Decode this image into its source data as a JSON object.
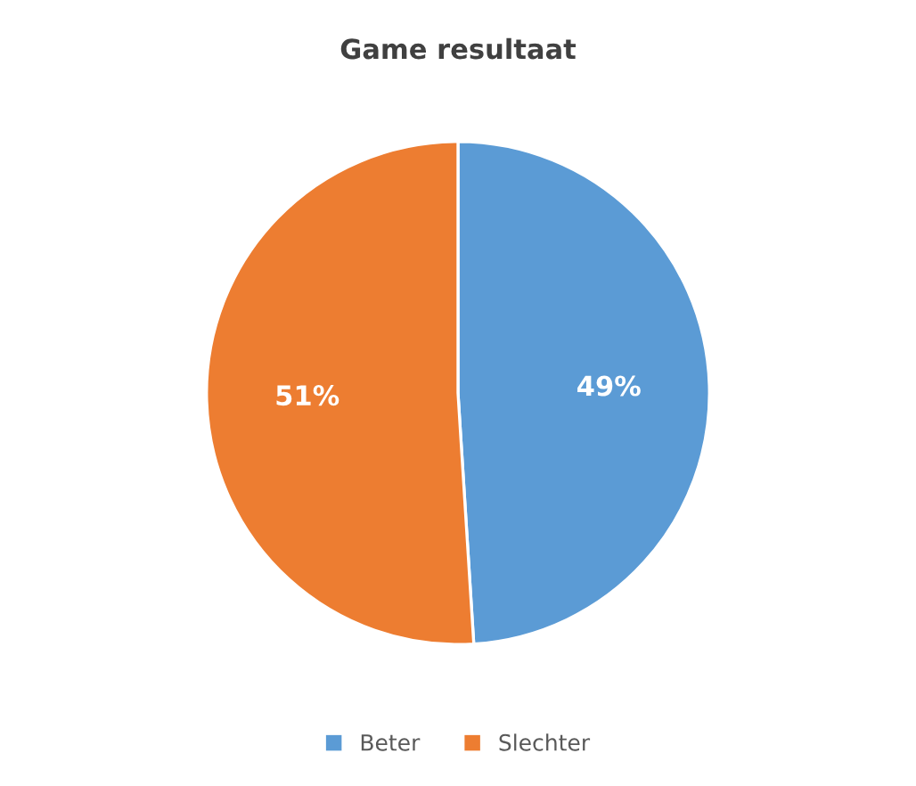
{
  "chart_data": {
    "type": "pie",
    "title": "Game resultaat",
    "categories": [
      "Beter",
      "Slechter"
    ],
    "values": [
      49,
      51
    ],
    "colors": [
      "#5b9bd5",
      "#ed7d31"
    ],
    "value_labels": [
      "49%",
      "51%"
    ],
    "legend": "bottom"
  }
}
